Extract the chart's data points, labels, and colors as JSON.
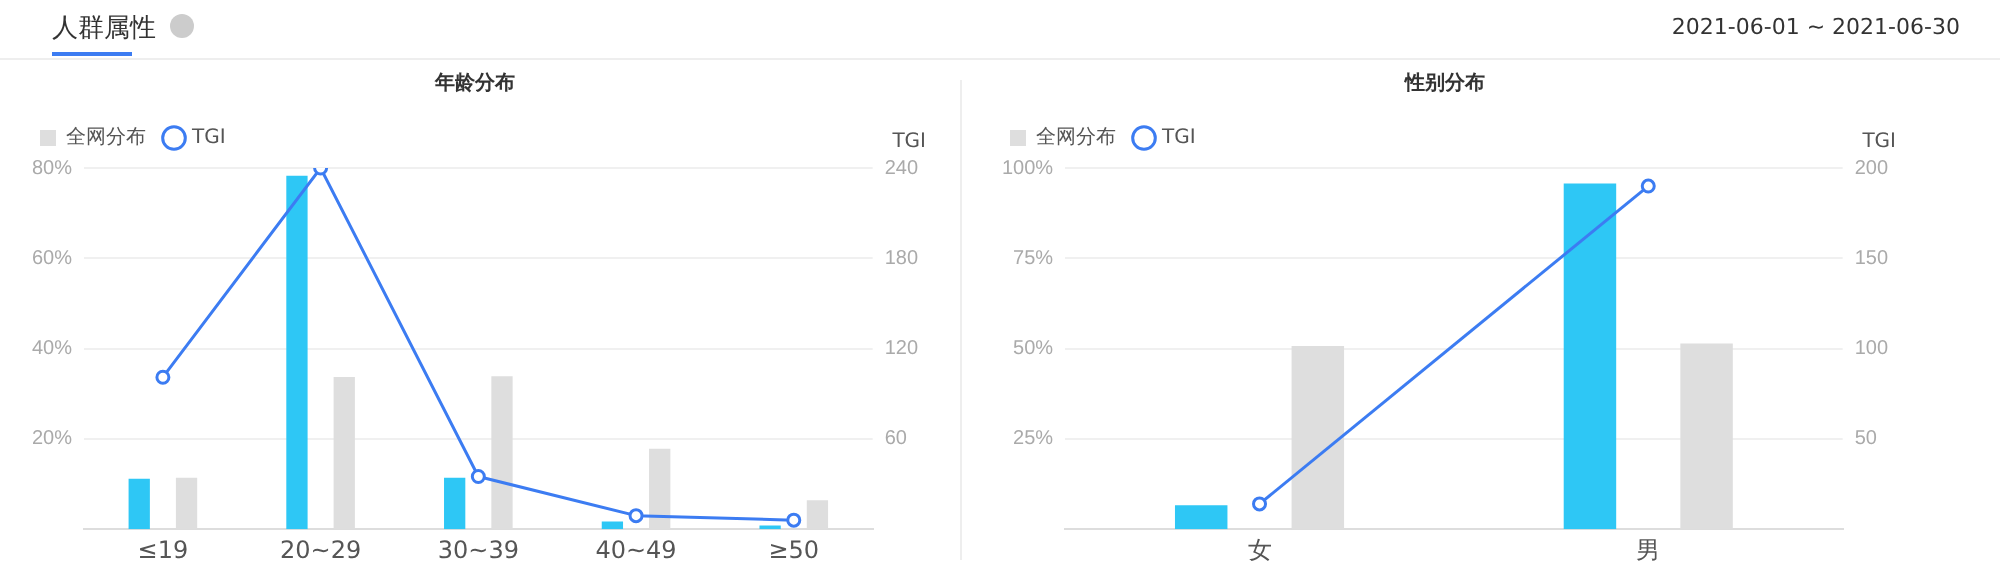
{
  "chart_data": [
    {
      "type": "bar",
      "title": "年龄分布",
      "annotations": [
        "人群属性",
        "2021-06-01 ~ 2021-06-30"
      ],
      "categories": [
        "≤19",
        "20~29",
        "30~39",
        "40~49",
        "≥50"
      ],
      "series": [
        {
          "color": "#2ec7f5",
          "values": [
            11.2,
            78.3,
            11.4,
            1.7,
            0.8
          ]
        },
        {
          "name": "全网分布",
          "color": "#dedede",
          "values": [
            11.4,
            33.7,
            33.9,
            17.8,
            6.4
          ]
        },
        {
          "name": "TGI",
          "type": "line",
          "axis": "y2",
          "color": "#3c7cf2",
          "values": [
            101,
            240,
            35,
            9,
            6
          ]
        }
      ],
      "ylim": [
        0,
        80
      ],
      "yticks": [
        {
          "value": 20,
          "label": "20%"
        },
        {
          "value": 40,
          "label": "40%"
        },
        {
          "value": 60,
          "label": "60%"
        },
        {
          "value": 80,
          "label": "80%"
        }
      ],
      "y2label": "TGI",
      "y2lim": [
        0,
        240
      ],
      "y2ticks": [
        60,
        120,
        180,
        240
      ],
      "grid": "y",
      "legend": "top left",
      "marker": "circle"
    },
    {
      "type": "bar",
      "title": "性别分布",
      "categories": [
        "女",
        "男"
      ],
      "series": [
        {
          "color": "#2ec7f5",
          "values": [
            6.6,
            95.7
          ]
        },
        {
          "name": "全网分布",
          "color": "#dedede",
          "values": [
            50.7,
            51.4
          ]
        },
        {
          "name": "TGI",
          "type": "line",
          "axis": "y2",
          "color": "#3c7cf2",
          "values": [
            14,
            190
          ]
        }
      ],
      "ylim": [
        0,
        100
      ],
      "yticks": [
        {
          "value": 25,
          "label": "25%"
        },
        {
          "value": 50,
          "label": "50%"
        },
        {
          "value": 75,
          "label": "75%"
        },
        {
          "value": 100,
          "label": "100%"
        }
      ],
      "y2label": "TGI",
      "y2lim": [
        0,
        200
      ],
      "y2ticks": [
        50,
        100,
        150,
        200
      ],
      "grid": "y",
      "legend": "top left",
      "marker": "circle"
    }
  ]
}
